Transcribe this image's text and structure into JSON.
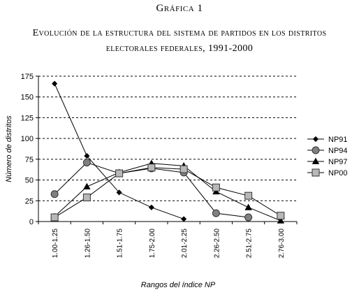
{
  "figure_label": "Gráfica 1",
  "title_line1": "Evolución de la estructura del sistema de partidos en los distritos",
  "title_line2": "electorales federales, 1991-2000",
  "chart_data": {
    "type": "line",
    "categories": [
      "1.00-1.25",
      "1.26-1.50",
      "1.51-1.75",
      "1.75-2.00",
      "2.01-2.25",
      "2.26-2.50",
      "2.51-2.75",
      "2.76-3.00"
    ],
    "yticks": [
      "0",
      "25",
      "50",
      "75",
      "100",
      "125",
      "150",
      "175"
    ],
    "ylim": [
      0,
      175
    ],
    "ylabel": "Número de distritos",
    "xlabel": "Rangos del índice NP",
    "grid": "horizontal dashed",
    "legend_position": "right",
    "series": [
      {
        "name": "NP91",
        "marker": "diamond",
        "color": "#000000",
        "values": [
          166,
          79,
          35,
          17,
          3,
          null,
          null,
          null
        ]
      },
      {
        "name": "NP94",
        "marker": "circle",
        "color": "#808080",
        "values": [
          33,
          71,
          58,
          64,
          59,
          10,
          5,
          null
        ]
      },
      {
        "name": "NP97",
        "marker": "triangle",
        "color": "#000000",
        "values": [
          6,
          42,
          59,
          70,
          67,
          36,
          17,
          1
        ]
      },
      {
        "name": "NP00",
        "marker": "square",
        "color": "#b8b8b8",
        "values": [
          5,
          29,
          58,
          65,
          63,
          41,
          31,
          7
        ]
      }
    ]
  }
}
